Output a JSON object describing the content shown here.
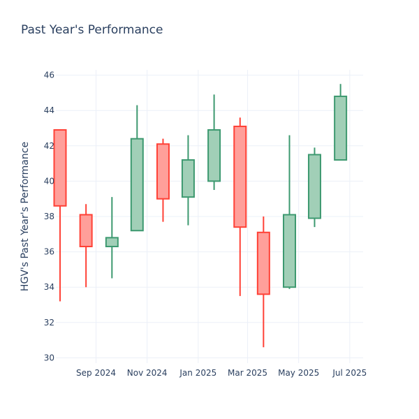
{
  "chart_data": {
    "type": "candlestick",
    "title": "Past Year's Performance",
    "xlabel": "",
    "ylabel": "HGV's Past Year's Performance",
    "ylim": [
      29.7,
      46.3
    ],
    "y_ticks": [
      30,
      32,
      34,
      36,
      38,
      40,
      42,
      44,
      46
    ],
    "x_range": [
      "2024-07-15",
      "2025-07-17"
    ],
    "x_ticks": [
      {
        "date": "2024-09-01",
        "label": "Sep 2024"
      },
      {
        "date": "2024-11-01",
        "label": "Nov 2024"
      },
      {
        "date": "2025-01-01",
        "label": "Jan 2025"
      },
      {
        "date": "2025-03-01",
        "label": "Mar 2025"
      },
      {
        "date": "2025-05-01",
        "label": "May 2025"
      },
      {
        "date": "2025-07-01",
        "label": "Jul 2025"
      }
    ],
    "grid": true,
    "colors": {
      "increasing_line": "#3d9970",
      "increasing_fill": "#a1cfb7",
      "decreasing_line": "#ff4136",
      "decreasing_fill": "#ff9f9a"
    },
    "candles": [
      {
        "date": "2024-07-20",
        "open": 42.9,
        "high": 42.9,
        "low": 33.2,
        "close": 38.6
      },
      {
        "date": "2024-08-20",
        "open": 38.1,
        "high": 38.7,
        "low": 34.0,
        "close": 36.3
      },
      {
        "date": "2024-09-20",
        "open": 36.3,
        "high": 39.1,
        "low": 34.5,
        "close": 36.8
      },
      {
        "date": "2024-10-20",
        "open": 37.2,
        "high": 44.3,
        "low": 37.2,
        "close": 42.4
      },
      {
        "date": "2024-11-20",
        "open": 42.1,
        "high": 42.4,
        "low": 37.7,
        "close": 39.0
      },
      {
        "date": "2024-12-20",
        "open": 39.1,
        "high": 42.6,
        "low": 37.5,
        "close": 41.2
      },
      {
        "date": "2025-01-20",
        "open": 40.0,
        "high": 44.9,
        "low": 39.5,
        "close": 42.9
      },
      {
        "date": "2025-02-20",
        "open": 43.1,
        "high": 43.6,
        "low": 33.5,
        "close": 37.4
      },
      {
        "date": "2025-03-20",
        "open": 37.1,
        "high": 38.0,
        "low": 30.6,
        "close": 33.6
      },
      {
        "date": "2025-04-20",
        "open": 34.0,
        "high": 42.6,
        "low": 33.9,
        "close": 38.1
      },
      {
        "date": "2025-05-20",
        "open": 37.9,
        "high": 41.9,
        "low": 37.4,
        "close": 41.5
      },
      {
        "date": "2025-06-20",
        "open": 41.2,
        "high": 45.5,
        "low": 41.2,
        "close": 44.8
      }
    ]
  }
}
